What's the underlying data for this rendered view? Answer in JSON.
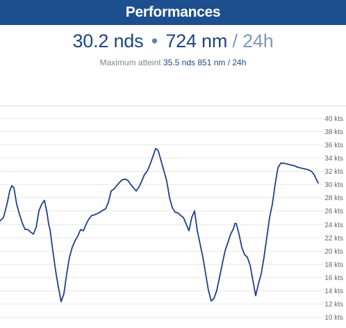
{
  "header": {
    "title": "Performances"
  },
  "summary": {
    "avg_speed": "30.2 nds",
    "separator": "•",
    "distance": "724 nm",
    "period": "/ 24h",
    "max_label": "Maximum atteint",
    "max_speed": "35.5 nds",
    "max_distance": "851 nm",
    "max_period": "/ 24h"
  },
  "chart_data": {
    "type": "line",
    "title": "",
    "xlabel": "",
    "ylabel": "",
    "unit": "kts",
    "ylim": [
      10,
      40
    ],
    "yticks": [
      10,
      12,
      14,
      16,
      18,
      20,
      22,
      24,
      26,
      28,
      30,
      32,
      34,
      36,
      38,
      40
    ],
    "ytick_labels": [
      "10 kts",
      "12 kts",
      "14 kts",
      "16 kts",
      "18 kts",
      "20 kts",
      "22 kts",
      "24 kts",
      "26 kts",
      "28 kts",
      "30 kts",
      "32 kts",
      "34 kts",
      "36 kts",
      "38 kts",
      "40 kts"
    ],
    "grid": true,
    "series": [
      {
        "color": "#1f3f8a",
        "x": [
          0,
          5,
          10,
          14,
          17,
          20,
          24,
          28,
          32,
          36,
          40,
          44,
          48,
          52,
          56,
          60,
          64,
          68,
          70,
          72,
          76,
          80,
          84,
          88,
          92,
          96,
          100,
          104,
          108,
          112,
          116,
          120,
          124,
          128,
          132,
          136,
          140,
          144,
          148,
          152,
          156,
          160,
          164,
          168,
          172,
          176,
          180,
          184,
          188,
          192,
          196,
          200,
          204,
          208,
          212,
          216,
          220,
          224,
          226,
          228,
          232,
          236,
          240,
          244,
          248,
          252,
          256,
          260,
          264,
          268,
          272,
          276,
          280,
          284,
          288,
          292,
          296,
          300,
          304,
          308,
          312,
          316,
          320,
          324,
          328,
          332,
          336,
          338,
          340,
          344,
          348,
          352,
          356,
          360,
          364,
          368,
          372,
          376,
          380,
          384,
          388,
          392,
          396,
          400,
          404,
          408,
          412,
          416,
          420,
          424,
          428,
          432,
          436,
          440,
          444,
          448,
          452,
          456,
          458
        ],
        "values": [
          24.5,
          25,
          27,
          29,
          29.8,
          29.5,
          27,
          25.5,
          24.2,
          23.2,
          23.2,
          22.8,
          22.5,
          23.5,
          26,
          27,
          27.6,
          25.5,
          24,
          23.2,
          20,
          17,
          14.5,
          12.3,
          13.5,
          16.5,
          19,
          20.5,
          21.5,
          22.2,
          23.2,
          23,
          24,
          24.8,
          25.3,
          25.4,
          25.6,
          25.8,
          26.1,
          26.3,
          27.3,
          29,
          29.3,
          29.8,
          30.3,
          30.7,
          30.8,
          30.6,
          30,
          29.5,
          29,
          29.6,
          30.5,
          31.5,
          32,
          33,
          34.2,
          35.4,
          35.3,
          35,
          33.5,
          32,
          30.5,
          28,
          26.5,
          25.8,
          25.7,
          25.3,
          25,
          24,
          23,
          25,
          26,
          23,
          21,
          19,
          16.5,
          14,
          12.4,
          12.8,
          14,
          16,
          18,
          20,
          21.2,
          22.5,
          23.3,
          24.1,
          24.1,
          22.5,
          20.5,
          19.4,
          19,
          17.8,
          15.5,
          13.2,
          15,
          16.5,
          19,
          22,
          25,
          27,
          30,
          32.5,
          33.2,
          33.2,
          33.1,
          33,
          32.9,
          32.8,
          32.6,
          32.5,
          32.4,
          32.3,
          32.2,
          32,
          31.5,
          30.6,
          30.2
        ]
      }
    ]
  }
}
